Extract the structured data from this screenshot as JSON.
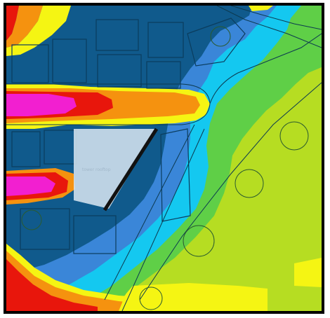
{
  "map": {
    "colors": {
      "red": "#e8160c",
      "orange": "#f5920f",
      "yellow": "#f5f513",
      "magenta": "#f21fd0",
      "cyan": "#14c8f0",
      "mid_blue": "#3a86d8",
      "deep_blue": "#105a8c",
      "green": "#5fcf47",
      "yellow_green": "#b6dd22",
      "pale_panel": "#dbe8f2",
      "frame": "#000000"
    },
    "faint_label": "tower rooftop"
  }
}
